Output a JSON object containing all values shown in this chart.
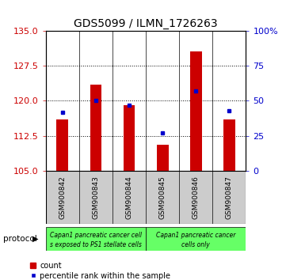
{
  "title": "GDS5099 / ILMN_1726263",
  "samples": [
    "GSM900842",
    "GSM900843",
    "GSM900844",
    "GSM900845",
    "GSM900846",
    "GSM900847"
  ],
  "count_values": [
    116.0,
    123.5,
    119.0,
    110.5,
    130.5,
    116.0
  ],
  "percentile_values": [
    42,
    50,
    47,
    27,
    57,
    43
  ],
  "ylim_left": [
    105,
    135
  ],
  "ylim_right": [
    0,
    100
  ],
  "yticks_left": [
    105,
    112.5,
    120,
    127.5,
    135
  ],
  "yticks_right": [
    0,
    25,
    50,
    75,
    100
  ],
  "bar_color": "#cc0000",
  "marker_color": "#0000cc",
  "bar_bottom": 105,
  "group1_label_line1": "Capan1 pancreatic cancer cell",
  "group1_label_line2": "s exposed to PS1 stellate cells",
  "group2_label_line1": "Capan1 pancreatic cancer",
  "group2_label_line2": "cells only",
  "group_color": "#66ff66",
  "sample_bg_color": "#cccccc",
  "protocol_label": "protocol",
  "legend_count": "count",
  "legend_percentile": "percentile rank within the sample",
  "tick_color_left": "#cc0000",
  "tick_color_right": "#0000cc",
  "title_fontsize": 10,
  "tick_fontsize": 8,
  "bar_width": 0.35
}
